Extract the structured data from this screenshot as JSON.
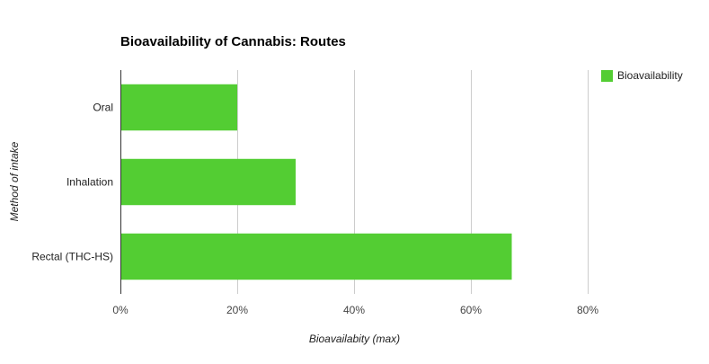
{
  "chart_data": {
    "type": "bar",
    "orientation": "horizontal",
    "title": "Bioavailability of Cannabis: Routes",
    "xlabel": "Bioavailabity (max)",
    "ylabel": "Method of intake",
    "categories": [
      "Oral",
      "Inhalation",
      "Rectal (THC-HS)"
    ],
    "series": [
      {
        "name": "Bioavailability",
        "values": [
          20,
          30,
          67
        ],
        "color": "#53cd33"
      }
    ],
    "xlim": [
      0,
      92
    ],
    "xticks": [
      0,
      20,
      40,
      60,
      80
    ],
    "xtick_labels": [
      "0%",
      "20%",
      "40%",
      "60%",
      "80%"
    ],
    "grid": true,
    "legend": "top-right"
  }
}
